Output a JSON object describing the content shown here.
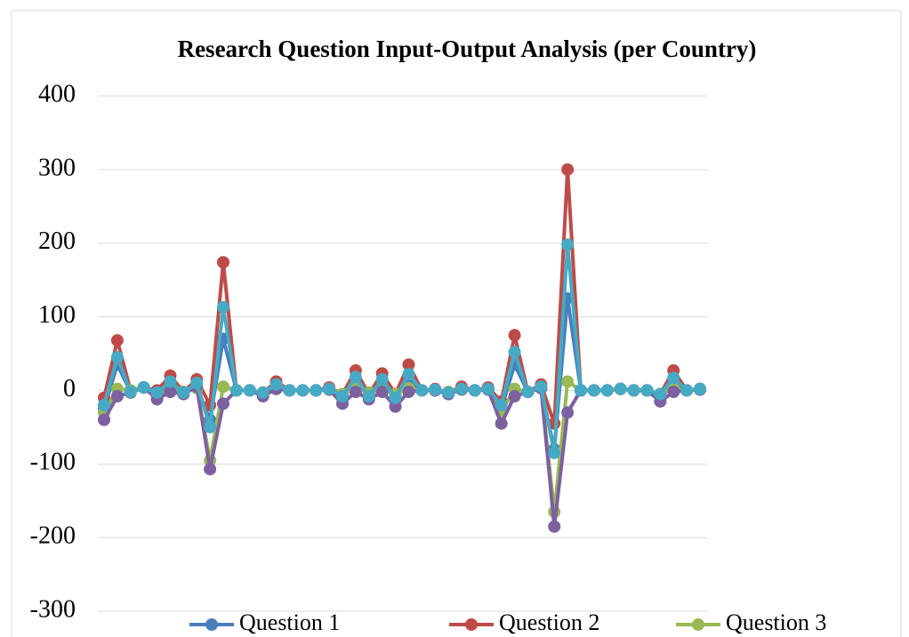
{
  "chart_data": {
    "type": "line",
    "title": "Research Question Input-Output Analysis (per Country)",
    "categories": [
      null,
      null,
      null,
      null,
      null,
      null,
      null,
      null,
      null,
      null,
      null,
      null,
      null,
      null,
      null,
      null,
      null,
      null,
      null,
      null,
      null,
      null,
      null,
      null,
      null,
      null,
      null,
      null,
      null,
      null,
      null,
      null,
      null,
      null,
      null,
      null,
      null,
      null,
      null,
      null,
      null,
      null,
      null,
      null,
      null,
      null
    ],
    "series": [
      {
        "name": "Question 1",
        "color": "#4a7ebb",
        "values": [
          -25,
          35,
          -2,
          4,
          -5,
          5,
          -2,
          5,
          -40,
          70,
          0,
          0,
          -3,
          3,
          0,
          0,
          0,
          1,
          -10,
          10,
          -5,
          8,
          -10,
          12,
          0,
          0,
          -3,
          2,
          0,
          2,
          -25,
          35,
          -2,
          3,
          -80,
          125,
          0,
          0,
          0,
          2,
          0,
          0,
          -8,
          10,
          0,
          2
        ]
      },
      {
        "name": "Question 2",
        "color": "#be4b48",
        "values": [
          -10,
          68,
          0,
          4,
          0,
          20,
          -2,
          15,
          -20,
          174,
          0,
          0,
          -3,
          12,
          0,
          0,
          0,
          4,
          -5,
          27,
          -5,
          23,
          -5,
          35,
          0,
          2,
          -3,
          5,
          0,
          4,
          -15,
          75,
          -2,
          8,
          -45,
          300,
          0,
          0,
          0,
          2,
          0,
          0,
          -5,
          27,
          0,
          2
        ]
      },
      {
        "name": "Question 3",
        "color": "#98b954",
        "values": [
          -30,
          2,
          0,
          4,
          -5,
          0,
          -2,
          3,
          -95,
          5,
          0,
          0,
          -3,
          2,
          0,
          0,
          0,
          1,
          -5,
          3,
          -3,
          2,
          -5,
          3,
          0,
          0,
          -2,
          1,
          0,
          1,
          -30,
          2,
          -2,
          3,
          -165,
          12,
          0,
          0,
          0,
          2,
          0,
          0,
          -5,
          3,
          0,
          1
        ]
      },
      {
        "color": "#7d60a0",
        "values": [
          -40,
          -8,
          -3,
          4,
          -12,
          -2,
          -5,
          5,
          -107,
          -18,
          0,
          0,
          -8,
          2,
          0,
          0,
          0,
          1,
          -18,
          -2,
          -12,
          -2,
          -22,
          -2,
          0,
          0,
          -5,
          1,
          0,
          1,
          -45,
          -8,
          -2,
          3,
          -185,
          -30,
          0,
          0,
          0,
          2,
          0,
          0,
          -15,
          -2,
          0,
          1
        ]
      },
      {
        "color": "#46aac5",
        "values": [
          -20,
          45,
          -2,
          4,
          -3,
          12,
          -3,
          10,
          -50,
          113,
          0,
          0,
          -3,
          8,
          0,
          0,
          0,
          2,
          -8,
          18,
          -8,
          15,
          -10,
          22,
          0,
          1,
          -3,
          2,
          0,
          2,
          -20,
          52,
          -2,
          5,
          -85,
          198,
          0,
          0,
          0,
          2,
          0,
          0,
          -5,
          17,
          0,
          2
        ]
      }
    ],
    "ylim": [
      -300,
      400
    ],
    "yticks": [
      -300,
      -200,
      -100,
      0,
      100,
      200,
      300,
      400
    ],
    "grid": true,
    "legend": "bottom"
  }
}
